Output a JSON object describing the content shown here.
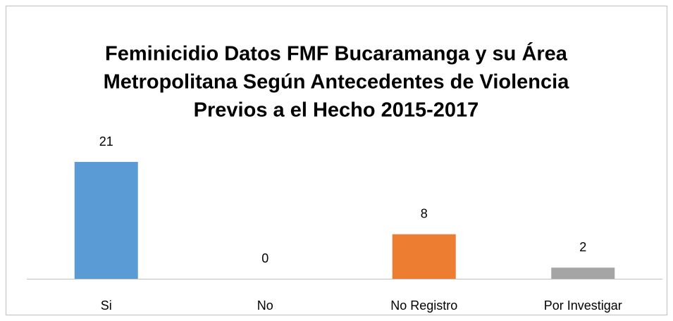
{
  "chart_data": {
    "type": "bar",
    "title": [
      "Feminicidio Datos FMF  Bucaramanga y su Área",
      "Metropolitana Según Antecedentes de Violencia",
      "Previos a el Hecho 2015-2017"
    ],
    "categories": [
      "Si",
      "No",
      "No Registro",
      "Por Investigar"
    ],
    "values": [
      21,
      0,
      8,
      2
    ],
    "colors": [
      "#5b9bd5",
      "#ffc000",
      "#ed7d31",
      "#a5a5a5"
    ]
  }
}
